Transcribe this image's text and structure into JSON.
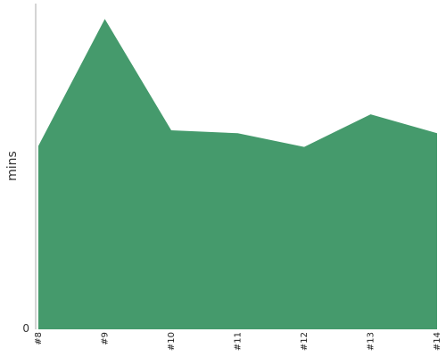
{
  "chart_data": {
    "type": "area",
    "categories": [
      "#8",
      "#9",
      "#10",
      "#11",
      "#12",
      "#13",
      "#14"
    ],
    "series": [
      {
        "values": [
          56.3,
          95.3,
          61.1,
          60.2,
          56.0,
          66.0,
          60.2
        ]
      }
    ],
    "ylabel": "mins",
    "xlabel": "",
    "ylim": [
      0,
      100
    ],
    "y_ticks": [
      "0"
    ],
    "grid": false,
    "colors": {
      "area": "#459a6c",
      "axis": "#aaaaaa"
    }
  }
}
